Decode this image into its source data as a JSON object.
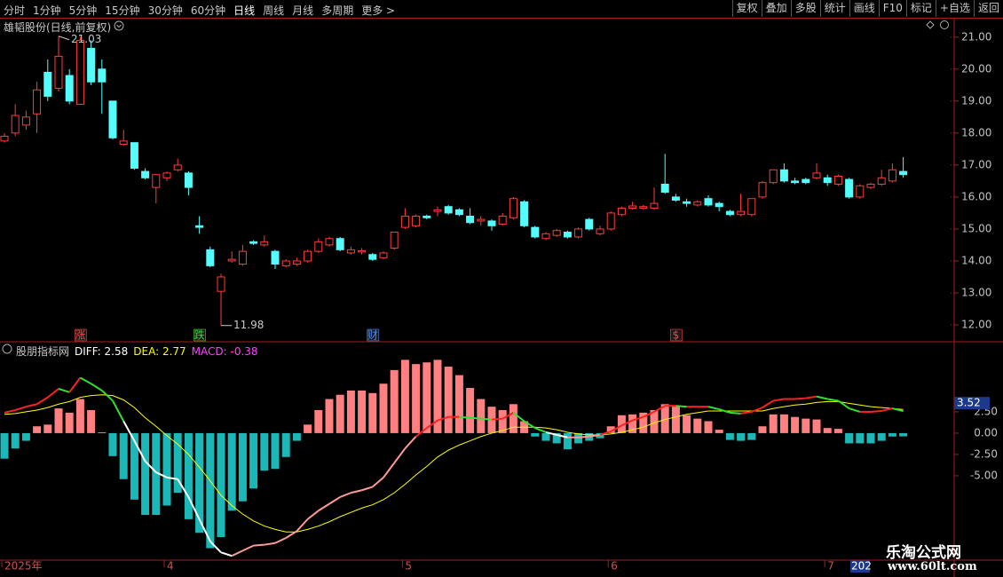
{
  "toolbar": {
    "periods": [
      "分时",
      "1分钟",
      "5分钟",
      "15分钟",
      "30分钟",
      "60分钟",
      "日线",
      "周线",
      "月线",
      "多周期",
      "更多 >"
    ],
    "active_period_index": 6,
    "tools": [
      "复权",
      "叠加",
      "多股",
      "统计",
      "画线",
      "F10",
      "标记",
      "+自选",
      "返回"
    ]
  },
  "watermark": {
    "title": "乐淘公式网",
    "url": "www.60lt.com"
  },
  "chart_data": [
    {
      "type": "candlestick",
      "title": "雄韬股份(日线,前复权)",
      "up_color": "#ff3c3c",
      "down_color": "#54fcfc",
      "open": [
        17.75,
        18.0,
        18.25,
        18.6,
        19.9,
        19.4,
        19.8,
        18.9,
        20.65,
        20.0,
        19.0,
        17.65,
        17.7,
        16.8,
        16.3,
        16.6,
        16.85,
        16.75,
        15.1,
        14.35,
        13.05,
        14.0,
        13.9,
        14.6,
        14.5,
        14.3,
        13.85,
        13.9,
        14.0,
        14.3,
        14.5,
        14.7,
        14.25,
        14.28,
        14.2,
        14.1,
        14.4,
        15.05,
        15.1,
        15.4,
        15.55,
        15.7,
        15.6,
        15.4,
        15.25,
        15.25,
        15.15,
        15.35,
        15.85,
        15.05,
        14.7,
        14.8,
        14.9,
        14.75,
        15.3,
        14.85,
        15.0,
        15.45,
        15.65,
        15.65,
        15.65,
        16.4,
        16.0,
        15.85,
        15.75,
        15.95,
        15.8,
        15.55,
        15.45,
        15.45,
        16.0,
        16.45,
        16.85,
        16.5,
        16.55,
        16.6,
        16.6,
        16.4,
        16.55,
        16.0,
        16.3,
        16.4,
        16.5,
        16.8
      ],
      "high": [
        18.0,
        18.9,
        18.7,
        19.6,
        20.3,
        21.03,
        20.0,
        21.0,
        20.9,
        20.3,
        19.0,
        18.1,
        17.7,
        16.9,
        16.7,
        16.8,
        17.2,
        16.8,
        15.4,
        14.45,
        13.6,
        14.3,
        14.5,
        14.65,
        14.8,
        14.35,
        14.05,
        14.1,
        14.35,
        14.7,
        14.75,
        14.75,
        14.45,
        14.4,
        14.25,
        14.3,
        14.9,
        15.65,
        15.45,
        15.45,
        15.7,
        15.75,
        15.65,
        15.65,
        15.4,
        15.3,
        15.5,
        16.0,
        15.9,
        15.1,
        14.9,
        15.0,
        14.95,
        15.05,
        15.35,
        15.1,
        15.55,
        15.7,
        15.85,
        15.75,
        16.3,
        17.35,
        16.1,
        15.95,
        15.9,
        16.05,
        15.85,
        15.6,
        16.1,
        15.95,
        16.5,
        16.85,
        17.05,
        16.6,
        16.6,
        17.05,
        16.7,
        16.7,
        16.6,
        16.4,
        16.45,
        16.85,
        17.05,
        17.25
      ],
      "low": [
        17.7,
        17.9,
        18.1,
        18.0,
        19.0,
        19.3,
        18.9,
        18.9,
        19.5,
        18.6,
        17.8,
        17.6,
        16.85,
        16.55,
        15.8,
        16.5,
        16.8,
        16.05,
        14.85,
        13.8,
        11.98,
        13.95,
        13.85,
        14.5,
        14.45,
        13.75,
        13.8,
        13.85,
        13.95,
        14.25,
        14.45,
        14.3,
        14.2,
        14.2,
        14.0,
        14.05,
        14.35,
        15.0,
        15.05,
        15.3,
        15.4,
        15.45,
        15.4,
        15.15,
        15.1,
        14.95,
        15.1,
        15.3,
        15.05,
        14.7,
        14.65,
        14.75,
        14.7,
        14.7,
        14.95,
        14.8,
        14.95,
        15.4,
        15.6,
        15.6,
        15.6,
        16.1,
        15.85,
        15.7,
        15.7,
        15.7,
        15.55,
        15.4,
        15.4,
        15.4,
        15.95,
        16.4,
        16.45,
        16.4,
        16.4,
        16.55,
        16.35,
        16.35,
        15.95,
        15.95,
        16.25,
        16.35,
        16.45,
        16.6
      ],
      "close": [
        17.9,
        18.55,
        18.5,
        19.35,
        19.15,
        20.4,
        19.0,
        20.9,
        19.6,
        19.6,
        17.85,
        17.75,
        16.9,
        16.6,
        16.7,
        16.75,
        17.0,
        16.3,
        15.05,
        13.85,
        13.5,
        14.05,
        14.3,
        14.55,
        14.6,
        13.9,
        14.0,
        14.0,
        14.3,
        14.6,
        14.7,
        14.35,
        14.35,
        14.32,
        14.05,
        14.25,
        14.9,
        15.4,
        15.4,
        15.35,
        15.6,
        15.5,
        15.45,
        15.2,
        15.3,
        15.1,
        15.4,
        15.95,
        15.1,
        14.75,
        14.85,
        14.95,
        14.75,
        15.0,
        15.0,
        15.0,
        15.5,
        15.65,
        15.72,
        15.7,
        15.8,
        16.15,
        15.9,
        15.8,
        15.85,
        15.75,
        15.7,
        15.45,
        15.55,
        15.95,
        16.45,
        16.85,
        16.5,
        16.45,
        16.45,
        16.75,
        16.45,
        16.65,
        16.0,
        16.35,
        16.4,
        16.6,
        16.85,
        16.7
      ],
      "event_labels": [
        null,
        null,
        null,
        null,
        null,
        null,
        null,
        "涨",
        null,
        null,
        null,
        null,
        null,
        null,
        null,
        null,
        null,
        null,
        "跌",
        null,
        null,
        null,
        null,
        null,
        null,
        null,
        null,
        null,
        null,
        null,
        null,
        null,
        null,
        null,
        "财",
        null,
        null,
        null,
        null,
        null,
        null,
        null,
        null,
        null,
        null,
        null,
        null,
        null,
        null,
        null,
        null,
        null,
        null,
        null,
        null,
        null,
        null,
        null,
        null,
        null,
        null,
        null,
        "$",
        null,
        null,
        null,
        null,
        null,
        null,
        null,
        null,
        null,
        null,
        null,
        null,
        null,
        null,
        null,
        null,
        null,
        null,
        null,
        null,
        null
      ],
      "ylim": [
        11.5,
        21.55
      ],
      "yticks": [
        {
          "value": 12,
          "label": "12.00"
        },
        {
          "value": 13,
          "label": "13.00"
        },
        {
          "value": 14,
          "label": "14.00"
        },
        {
          "value": 15,
          "label": "15.00"
        },
        {
          "value": 16,
          "label": "16.00"
        },
        {
          "value": 17,
          "label": "17.00"
        },
        {
          "value": 18,
          "label": "18.00"
        },
        {
          "value": 19,
          "label": "19.00"
        },
        {
          "value": 20,
          "label": "20.00"
        },
        {
          "value": 21,
          "label": "21.00"
        }
      ]
    },
    {
      "type": "macd",
      "title": "股朋指标网",
      "up_color": "#ff8080",
      "down_color": "#1cb8b8",
      "categories": [
        "2025年",
        null,
        null,
        null,
        null,
        null,
        null,
        null,
        null,
        null,
        null,
        null,
        null,
        null,
        null,
        "4",
        null,
        null,
        null,
        null,
        null,
        null,
        null,
        null,
        null,
        null,
        null,
        null,
        null,
        null,
        null,
        null,
        null,
        null,
        null,
        null,
        null,
        "5",
        null,
        null,
        null,
        null,
        null,
        null,
        null,
        null,
        null,
        null,
        null,
        null,
        null,
        null,
        null,
        null,
        null,
        null,
        "6",
        null,
        null,
        null,
        null,
        null,
        null,
        null,
        null,
        null,
        null,
        null,
        null,
        null,
        null,
        null,
        null,
        null,
        null,
        null,
        "7",
        null,
        null,
        null,
        null,
        null,
        null,
        null
      ],
      "series": [
        {
          "name": "DIFF",
          "color": "#ffffff",
          "values": [
            2.4,
            2.7,
            3.1,
            3.4,
            4.2,
            5.2,
            4.8,
            6.5,
            5.8,
            5.0,
            3.8,
            1.4,
            -0.9,
            -3.3,
            -4.6,
            -5.2,
            -5.4,
            -7.5,
            -10.1,
            -12.7,
            -14.0,
            -14.4,
            -13.8,
            -13.2,
            -13.1,
            -12.9,
            -12.3,
            -11.5,
            -10.1,
            -9.1,
            -8.3,
            -7.5,
            -7.0,
            -6.7,
            -6.3,
            -5.2,
            -3.5,
            -1.8,
            -0.4,
            0.6,
            1.5,
            1.9,
            1.9,
            1.8,
            1.7,
            1.6,
            1.7,
            2.4,
            1.4,
            0.6,
            0.1,
            -0.2,
            -0.5,
            -0.5,
            -0.4,
            -0.2,
            0.2,
            0.9,
            1.5,
            1.9,
            2.5,
            3.2,
            3.2,
            3.1,
            3.1,
            3.1,
            2.8,
            2.4,
            2.3,
            2.5,
            3.0,
            3.8,
            4.0,
            4.0,
            4.1,
            4.3,
            4.0,
            3.8,
            2.9,
            2.5,
            2.5,
            2.6,
            2.9,
            2.58
          ]
        },
        {
          "name": "DEA",
          "color": "#ffff00",
          "values": [
            2.2,
            2.3,
            2.5,
            2.7,
            3.0,
            3.4,
            3.7,
            4.2,
            4.4,
            4.5,
            4.4,
            3.9,
            3.0,
            1.8,
            0.8,
            -0.3,
            -1.3,
            -2.5,
            -4.0,
            -5.6,
            -7.3,
            -8.5,
            -9.5,
            -10.3,
            -10.9,
            -11.3,
            -11.6,
            -11.6,
            -11.3,
            -10.9,
            -10.4,
            -9.8,
            -9.3,
            -8.8,
            -8.4,
            -7.8,
            -7.0,
            -6.0,
            -4.9,
            -3.9,
            -2.8,
            -2.0,
            -1.4,
            -0.9,
            -0.4,
            0.0,
            0.3,
            0.7,
            0.7,
            0.7,
            0.6,
            0.4,
            0.1,
            -0.1,
            -0.2,
            -0.2,
            -0.1,
            0.1,
            0.4,
            0.7,
            1.2,
            1.6,
            1.9,
            2.2,
            2.4,
            2.6,
            2.6,
            2.6,
            2.6,
            2.6,
            2.6,
            2.9,
            3.1,
            3.3,
            3.4,
            3.6,
            3.7,
            3.7,
            3.5,
            3.3,
            3.1,
            3.0,
            2.9,
            2.77
          ]
        },
        {
          "name": "MACD",
          "color": "#ff40ff",
          "values": [
            -3.0,
            -1.8,
            -0.9,
            0.8,
            1.0,
            2.9,
            2.4,
            4.0,
            2.7,
            0.1,
            -2.7,
            -5.4,
            -7.8,
            -9.6,
            -9.6,
            -8.5,
            -7.0,
            -10.1,
            -11.7,
            -13.5,
            -12.2,
            -9.1,
            -8.0,
            -6.5,
            -4.4,
            -4.2,
            -2.8,
            -0.9,
            1.0,
            2.7,
            4.0,
            4.5,
            5.0,
            5.0,
            4.7,
            5.8,
            7.4,
            8.6,
            8.1,
            8.3,
            8.6,
            7.8,
            6.8,
            5.3,
            4.0,
            3.1,
            2.7,
            3.4,
            1.4,
            -0.4,
            -0.9,
            -1.2,
            -1.9,
            -1.2,
            -0.9,
            -0.6,
            0.8,
            2.1,
            2.2,
            2.4,
            2.7,
            3.4,
            3.1,
            2.1,
            1.7,
            1.4,
            0.4,
            -0.8,
            -0.9,
            -0.8,
            0.8,
            2.2,
            2.2,
            1.9,
            1.7,
            1.6,
            0.6,
            0.5,
            -1.2,
            -1.2,
            -1.2,
            -0.9,
            -0.4,
            -0.38
          ]
        }
      ],
      "ylim": [
        -14.8,
        10.2
      ],
      "yticks": [
        {
          "value": -5,
          "label": "-5.00"
        },
        {
          "value": -2.5,
          "label": "-2.50"
        },
        {
          "value": 0,
          "label": "0.00"
        },
        {
          "value": 2.5,
          "label": "2.50"
        }
      ],
      "cursor_value": 3.52,
      "cursor_category_label": "202"
    }
  ]
}
